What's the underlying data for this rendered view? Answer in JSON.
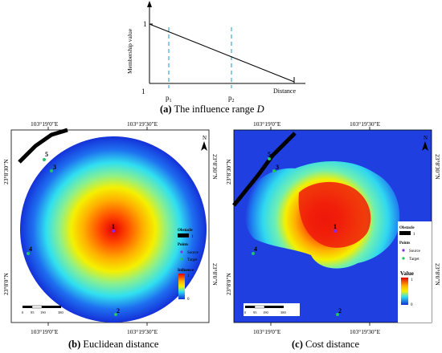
{
  "top_chart": {
    "y_label": "Membership value",
    "y_tick_1": "1",
    "origin_label": "1",
    "x_label": "Distance",
    "p1_label": "p",
    "p1_sub": "1",
    "p2_label": "p",
    "p2_sub": "2",
    "caption_letter": "(a)",
    "caption_text": "The influence range",
    "caption_var": "D",
    "line_color": "#000000",
    "dash_color": "#4fb0d8"
  },
  "map_b": {
    "top_left_coord": "103°19'0\"E",
    "top_right_coord": "103°19'30\"E",
    "bottom_left_coord": "103°19'0\"E",
    "bottom_right_coord": "103°19'30\"E",
    "left_top_coord": "23°8'30\"N",
    "left_bottom_coord": "23°8'0\"N",
    "right_top_coord": "23°8'30\"N",
    "right_bottom_coord": "23°8'0\"N",
    "north": "N",
    "points": [
      "1",
      "2",
      "3",
      "4",
      "5"
    ],
    "legend": {
      "obstacle_title": "Obstacle",
      "obstacle_value": "1",
      "points_title": "Points",
      "source": "Source",
      "target": "Target",
      "influence_title": "Influence",
      "max": "1",
      "min": "0"
    },
    "scale": [
      "0",
      "95",
      "190",
      "380"
    ],
    "caption_letter": "(b)",
    "caption_text": "Euclidean distance"
  },
  "map_c": {
    "top_left_coord": "103°19'0\"E",
    "top_right_coord": "103°19'30\"E",
    "bottom_left_coord": "103°19'0\"E",
    "bottom_right_coord": "103°19'30\"E",
    "left_top_coord": "23°8'30\"N",
    "left_bottom_coord": "23°8'0\"N",
    "right_top_coord": "23°8'30\"N",
    "right_bottom_coord": "23°8'0\"N",
    "north": "N",
    "points": [
      "1",
      "2",
      "3",
      "4",
      "5"
    ],
    "legend": {
      "obstacle_title": "Obstacle",
      "obstacle_value": "1",
      "points_title": "Points",
      "source": "Source",
      "target": "Target",
      "value_title": "Value",
      "max": "1",
      "min": "0"
    },
    "scale": [
      "0",
      "95",
      "190",
      "380"
    ],
    "caption_letter": "(c)",
    "caption_text": "Cost distance"
  },
  "colors": {
    "source_point": "#8a2be2",
    "target_point": "#22c55e",
    "map_bg_c": "#1f3fe0",
    "obstacle": "#000000"
  }
}
